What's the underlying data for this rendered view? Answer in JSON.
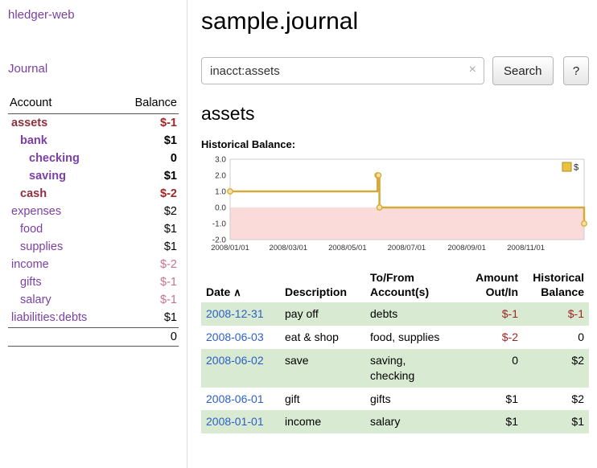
{
  "colors": {
    "link_purple": "#7b3fa5",
    "negative_account": "#8f2f3f",
    "amount_red": "#a02525",
    "rose": "#c4748a",
    "date_blue": "#2b5fc7",
    "row_green": "#d9ead3",
    "chart_line": "#d4ab3a",
    "chart_marker_fill": "#f6e3a3",
    "chart_fill_negative": "#fbdada"
  },
  "sidebar": {
    "brand": "hledger-web",
    "journal_link": "Journal",
    "header": {
      "account": "Account",
      "balance": "Balance"
    },
    "accounts": [
      {
        "name": "assets",
        "balance": "$-1",
        "indent": 0,
        "bold": true,
        "negative_name": true,
        "balance_class": "neg"
      },
      {
        "name": "bank",
        "balance": "$1",
        "indent": 1,
        "bold": true,
        "negative_name": false,
        "balance_class": ""
      },
      {
        "name": "checking",
        "balance": "0",
        "indent": 2,
        "bold": true,
        "negative_name": false,
        "balance_class": ""
      },
      {
        "name": "saving",
        "balance": "$1",
        "indent": 2,
        "bold": true,
        "negative_name": false,
        "balance_class": ""
      },
      {
        "name": "cash",
        "balance": "$-2",
        "indent": 1,
        "bold": true,
        "negative_name": true,
        "balance_class": "neg"
      },
      {
        "name": "expenses",
        "balance": "$2",
        "indent": 0,
        "bold": false,
        "negative_name": false,
        "balance_class": ""
      },
      {
        "name": "food",
        "balance": "$1",
        "indent": 1,
        "bold": false,
        "negative_name": false,
        "balance_class": ""
      },
      {
        "name": "supplies",
        "balance": "$1",
        "indent": 1,
        "bold": false,
        "negative_name": false,
        "balance_class": ""
      },
      {
        "name": "income",
        "balance": "$-2",
        "indent": 0,
        "bold": false,
        "negative_name": false,
        "balance_class": "rose"
      },
      {
        "name": "gifts",
        "balance": "$-1",
        "indent": 1,
        "bold": false,
        "negative_name": false,
        "balance_class": "rose"
      },
      {
        "name": "salary",
        "balance": "$-1",
        "indent": 1,
        "bold": false,
        "negative_name": false,
        "balance_class": "rose"
      },
      {
        "name": "liabilities:debts",
        "balance": "$1",
        "indent": 0,
        "bold": false,
        "negative_name": false,
        "balance_class": ""
      }
    ],
    "total": "0"
  },
  "main": {
    "title": "sample.journal",
    "search": {
      "value": "inacct:assets",
      "clear": "×",
      "button_label": "Search",
      "help_label": "?"
    },
    "account_heading": "assets",
    "section_label": "Historical Balance:"
  },
  "chart_data": {
    "type": "line",
    "step": true,
    "title": "Historical Balance",
    "legend": [
      {
        "label": "$",
        "color": "#e9c33f"
      }
    ],
    "ylim": [
      -2.0,
      3.0
    ],
    "y_ticks": [
      3.0,
      2.0,
      1.0,
      0.0,
      -1.0,
      -2.0
    ],
    "x_ticks": [
      "2008/01/01",
      "2008/03/01",
      "2008/05/01",
      "2008/07/01",
      "2008/09/01",
      "2008/11/01"
    ],
    "x_range": [
      "2008-01-01",
      "2008-12-31"
    ],
    "points": [
      {
        "date": "2008-01-01",
        "value": 1
      },
      {
        "date": "2008-06-01",
        "value": 2
      },
      {
        "date": "2008-06-02",
        "value": 2
      },
      {
        "date": "2008-06-03",
        "value": 0
      },
      {
        "date": "2008-12-31",
        "value": -1
      }
    ],
    "negative_region_shaded": true,
    "grid": false,
    "legend_position": "top-right"
  },
  "register": {
    "headers": {
      "date": "Date",
      "sort_icon": "∧",
      "description": "Description",
      "tofrom_line1": "To/From",
      "tofrom_line2": "Account(s)",
      "amount_line1": "Amount",
      "amount_line2": "Out/In",
      "balance_line1": "Historical",
      "balance_line2": "Balance"
    },
    "rows": [
      {
        "date": "2008-12-31",
        "description": "pay off",
        "accounts": "debts",
        "amount": "$-1",
        "amount_negative": true,
        "balance": "$-1",
        "balance_negative": true,
        "shaded": true
      },
      {
        "date": "2008-06-03",
        "description": "eat & shop",
        "accounts": "food, supplies",
        "amount": "$-2",
        "amount_negative": true,
        "balance": "0",
        "balance_negative": false,
        "shaded": false
      },
      {
        "date": "2008-06-02",
        "description": "save",
        "accounts": "saving, checking",
        "amount": "0",
        "amount_negative": false,
        "balance": "$2",
        "balance_negative": false,
        "shaded": true
      },
      {
        "date": "2008-06-01",
        "description": "gift",
        "accounts": "gifts",
        "amount": "$1",
        "amount_negative": false,
        "balance": "$2",
        "balance_negative": false,
        "shaded": false
      },
      {
        "date": "2008-01-01",
        "description": "income",
        "accounts": "salary",
        "amount": "$1",
        "amount_negative": false,
        "balance": "$1",
        "balance_negative": false,
        "shaded": true
      }
    ]
  }
}
